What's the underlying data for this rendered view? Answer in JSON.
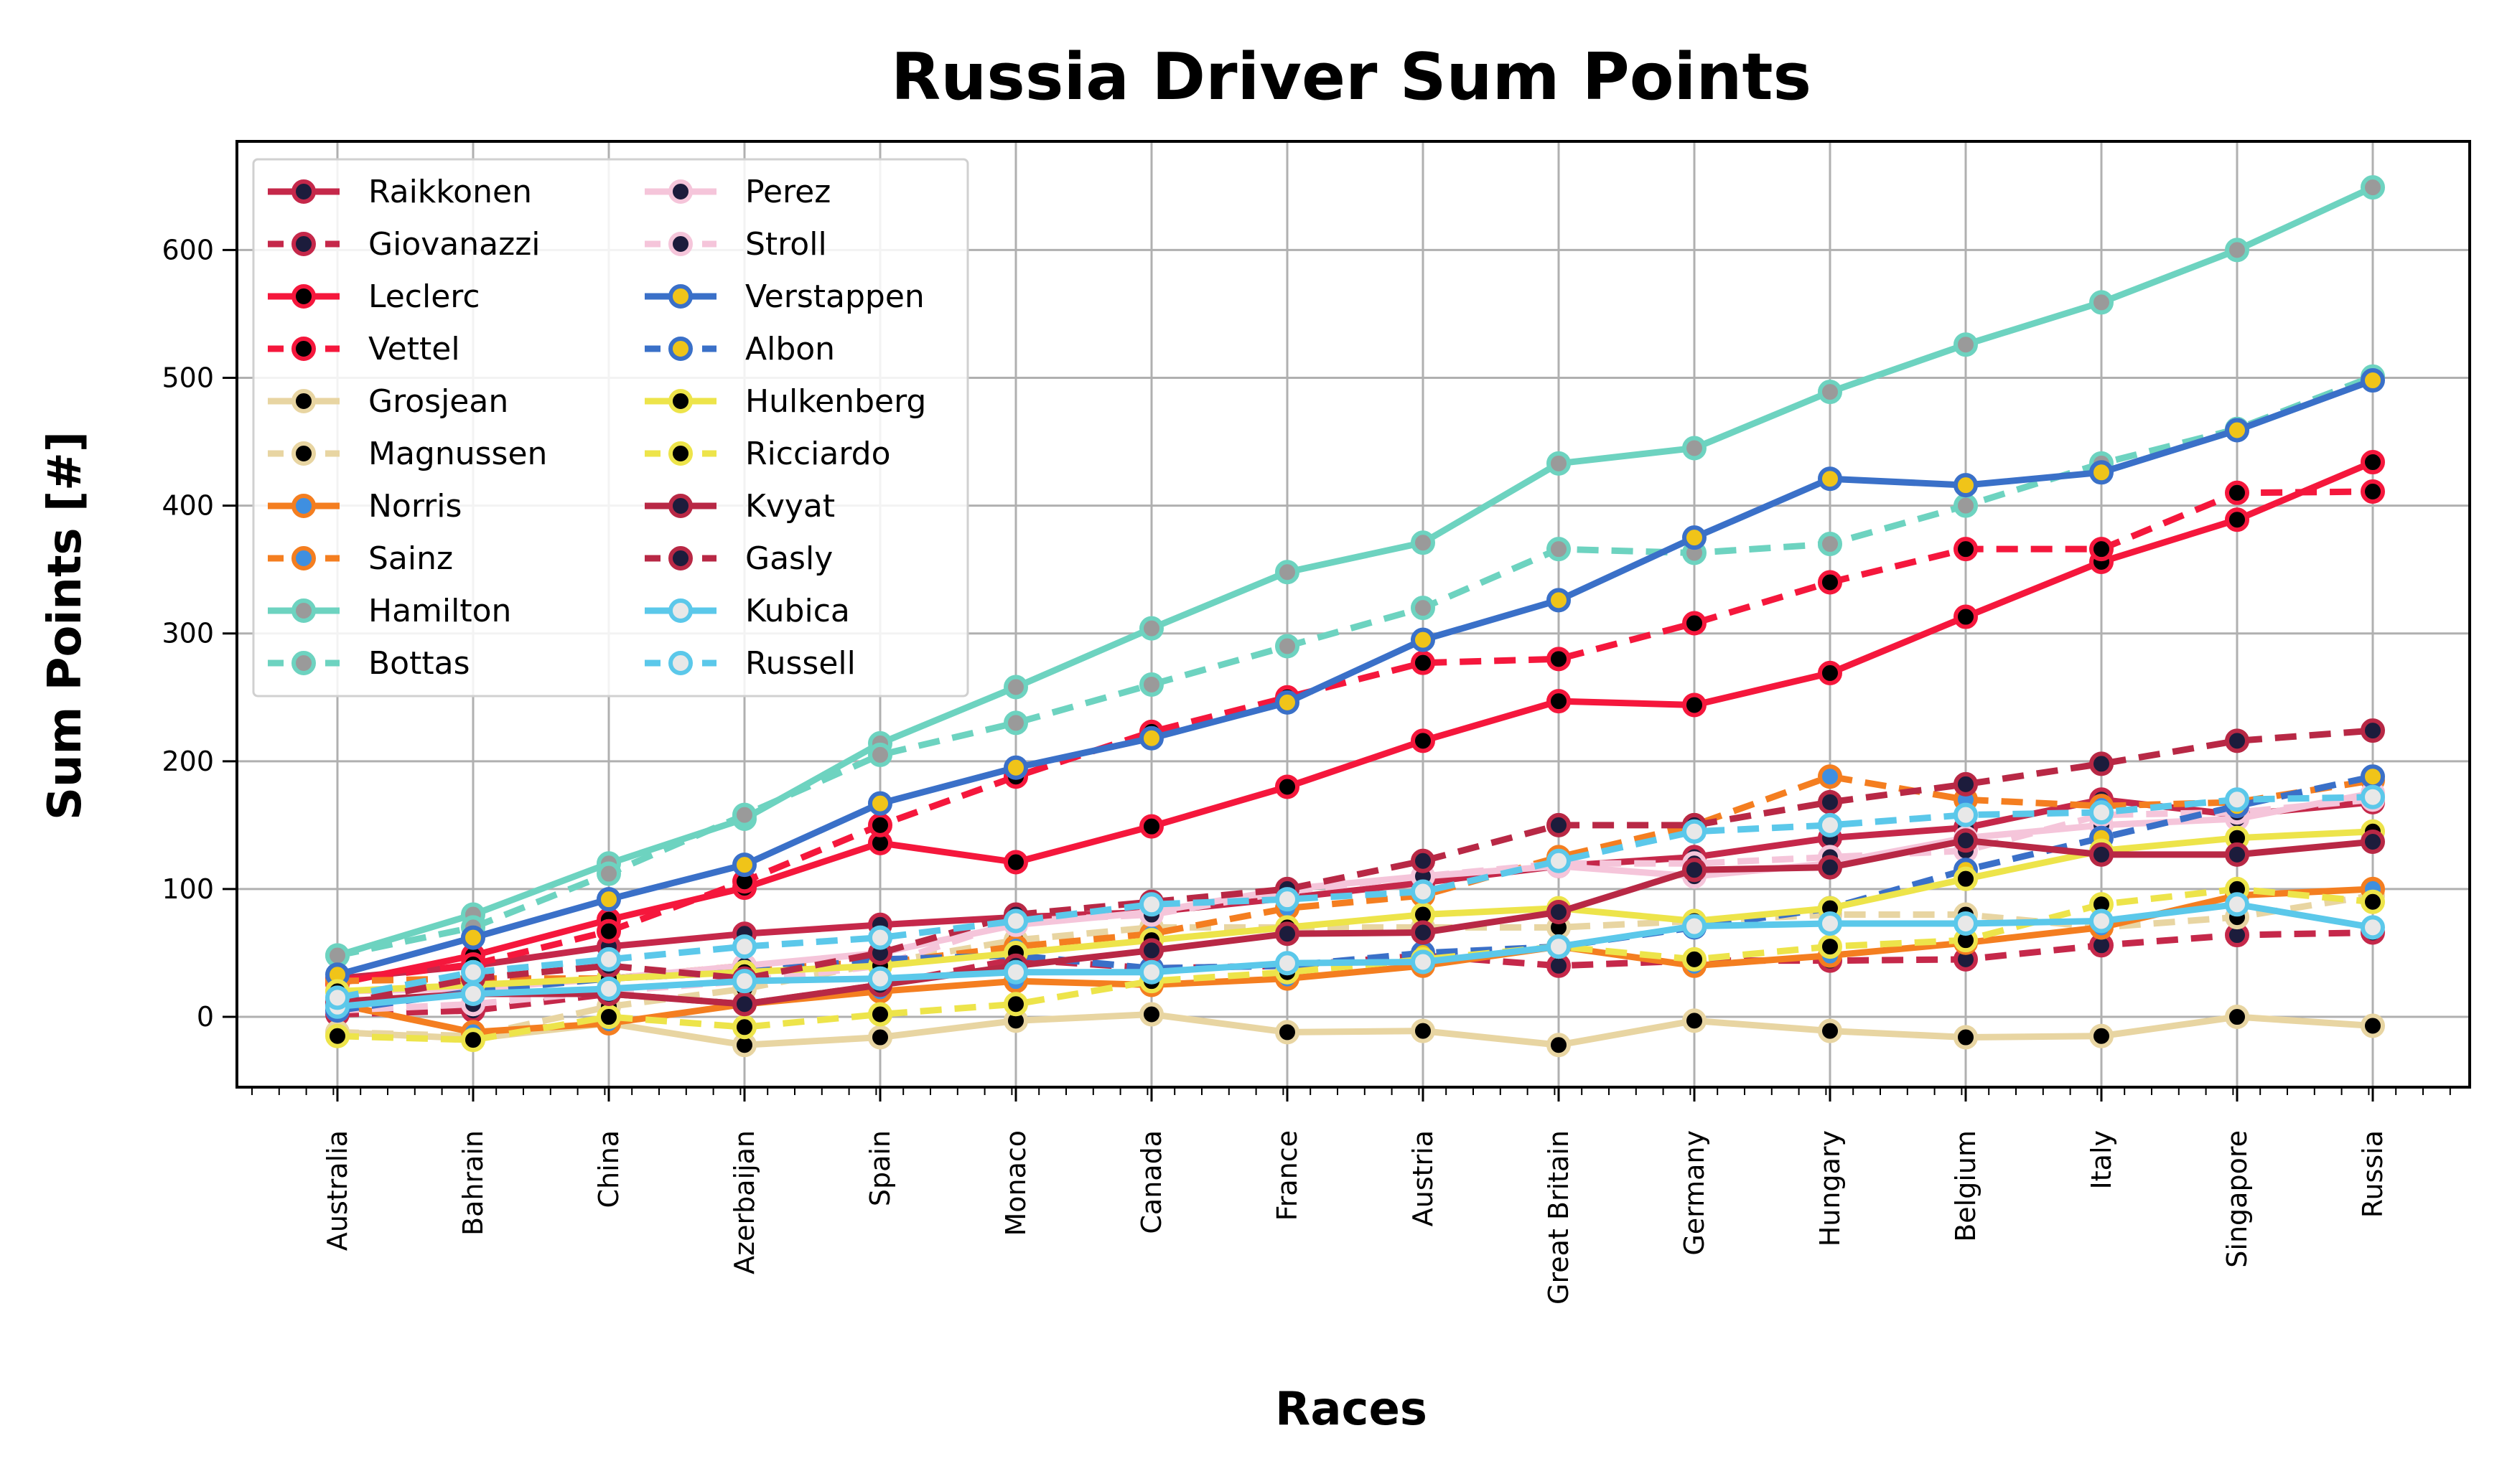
{
  "chart_data": {
    "type": "line",
    "title": "Russia Driver Sum Points",
    "xlabel": "Races",
    "ylabel": "Sum Points [#]",
    "ylim": [
      -55,
      685
    ],
    "yticks": [
      0,
      100,
      200,
      300,
      400,
      500,
      600
    ],
    "grid": true,
    "legend_position": "top-left",
    "legend_columns": 2,
    "categories": [
      "Australia",
      "Bahrain",
      "China",
      "Azerbaijan",
      "Spain",
      "Monaco",
      "Canada",
      "France",
      "Austria",
      "Great Britain",
      "Germany",
      "Hungary",
      "Belgium",
      "Italy",
      "Singapore",
      "Russia"
    ],
    "series": [
      {
        "name": "Raikkonen",
        "color": "#c5284a",
        "dash": "solid",
        "marker_face": "#1c1c3c",
        "values": [
          30,
          40,
          55,
          65,
          72,
          78,
          82,
          93,
          105,
          118,
          125,
          140,
          148,
          170,
          158,
          168
        ]
      },
      {
        "name": "Giovanazzi",
        "color": "#c5284a",
        "dash": "dashed",
        "marker_face": "#1c1c3c",
        "values": [
          2,
          5,
          18,
          10,
          25,
          45,
          38,
          40,
          48,
          40,
          44,
          44,
          45,
          56,
          64,
          66
        ]
      },
      {
        "name": "Leclerc",
        "color": "#f5173c",
        "dash": "solid",
        "marker_face": "#000000",
        "values": [
          26,
          48,
          76,
          101,
          136,
          121,
          149,
          180,
          216,
          247,
          244,
          269,
          313,
          356,
          389,
          434
        ]
      },
      {
        "name": "Vettel",
        "color": "#f5173c",
        "dash": "dashed",
        "marker_face": "#000000",
        "values": [
          28,
          41,
          67,
          106,
          150,
          188,
          223,
          250,
          277,
          280,
          308,
          340,
          366,
          366,
          410,
          411
        ]
      },
      {
        "name": "Grosjean",
        "color": "#e8d5a2",
        "dash": "solid",
        "marker_face": "#000000",
        "values": [
          -12,
          -17,
          -5,
          -22,
          -16,
          -3,
          2,
          -12,
          -11,
          -22,
          -3,
          -11,
          -16,
          -15,
          0,
          -7
        ]
      },
      {
        "name": "Magnussen",
        "color": "#e8d5a2",
        "dash": "dashed",
        "marker_face": "#000000",
        "values": [
          -12,
          -15,
          8,
          22,
          42,
          60,
          70,
          70,
          70,
          70,
          75,
          80,
          80,
          70,
          78,
          95
        ]
      },
      {
        "name": "Norris",
        "color": "#f47e20",
        "dash": "solid",
        "marker_face": "#3f8fe0",
        "values": [
          10,
          -12,
          -5,
          10,
          20,
          28,
          25,
          30,
          40,
          55,
          40,
          48,
          58,
          70,
          95,
          100
        ]
      },
      {
        "name": "Sainz",
        "color": "#f47e20",
        "dash": "dashed",
        "marker_face": "#3f8fe0",
        "values": [
          28,
          30,
          30,
          40,
          42,
          55,
          65,
          85,
          95,
          125,
          150,
          188,
          170,
          165,
          168,
          185
        ]
      },
      {
        "name": "Hamilton",
        "color": "#6dd3c0",
        "dash": "solid",
        "marker_face": "#9a9a9a",
        "values": [
          48,
          80,
          120,
          155,
          214,
          258,
          304,
          348,
          371,
          433,
          445,
          489,
          526,
          559,
          600,
          649
        ]
      },
      {
        "name": "Bottas",
        "color": "#6dd3c0",
        "dash": "dashed",
        "marker_face": "#9a9a9a",
        "values": [
          48,
          70,
          112,
          158,
          205,
          230,
          260,
          290,
          320,
          366,
          363,
          370,
          400,
          433,
          460,
          501
        ]
      },
      {
        "name": "Perez",
        "color": "#f5c5da",
        "dash": "solid",
        "marker_face": "#1c1c3c",
        "values": [
          20,
          22,
          30,
          40,
          50,
          72,
          82,
          100,
          110,
          118,
          110,
          120,
          140,
          150,
          155,
          175
        ]
      },
      {
        "name": "Stroll",
        "color": "#f5c5da",
        "dash": "dashed",
        "marker_face": "#1c1c3c",
        "values": [
          5,
          10,
          20,
          28,
          40,
          75,
          80,
          98,
          110,
          120,
          120,
          125,
          130,
          158,
          160,
          170
        ]
      },
      {
        "name": "Verstappen",
        "color": "#3a70c8",
        "dash": "solid",
        "marker_face": "#f0c419",
        "values": [
          33,
          62,
          92,
          119,
          167,
          195,
          218,
          246,
          295,
          326,
          375,
          421,
          416,
          426,
          459,
          498
        ]
      },
      {
        "name": "Albon",
        "color": "#3a70c8",
        "dash": "dashed",
        "marker_face": "#f0c419",
        "values": [
          5,
          20,
          30,
          35,
          45,
          48,
          38,
          40,
          50,
          55,
          70,
          85,
          115,
          140,
          165,
          188
        ]
      },
      {
        "name": "Hulkenberg",
        "color": "#ede44a",
        "dash": "solid",
        "marker_face": "#000000",
        "values": [
          20,
          25,
          30,
          35,
          40,
          50,
          60,
          70,
          80,
          85,
          75,
          85,
          108,
          130,
          140,
          145
        ]
      },
      {
        "name": "Ricciardo",
        "color": "#ede44a",
        "dash": "dashed",
        "marker_face": "#000000",
        "values": [
          -15,
          -18,
          0,
          -8,
          2,
          10,
          28,
          35,
          45,
          55,
          45,
          55,
          60,
          88,
          100,
          90
        ]
      },
      {
        "name": "Kvyat",
        "color": "#b82845",
        "dash": "solid",
        "marker_face": "#1c1c3c",
        "values": [
          12,
          18,
          18,
          10,
          25,
          40,
          52,
          65,
          66,
          82,
          115,
          117,
          138,
          127,
          127,
          137
        ]
      },
      {
        "name": "Gasly",
        "color": "#b82845",
        "dash": "dashed",
        "marker_face": "#1c1c3c",
        "values": [
          10,
          30,
          40,
          30,
          50,
          80,
          90,
          100,
          122,
          150,
          150,
          168,
          182,
          198,
          216,
          224
        ]
      },
      {
        "name": "Kubica",
        "color": "#5bc8ea",
        "dash": "solid",
        "marker_face": "#e8e8e8",
        "values": [
          8,
          18,
          22,
          28,
          30,
          35,
          35,
          42,
          43,
          55,
          71,
          73,
          73,
          75,
          88,
          70
        ]
      },
      {
        "name": "Russell",
        "color": "#5bc8ea",
        "dash": "dashed",
        "marker_face": "#e8e8e8",
        "values": [
          15,
          35,
          45,
          55,
          62,
          75,
          88,
          92,
          98,
          122,
          145,
          150,
          158,
          160,
          170,
          172
        ]
      }
    ]
  }
}
